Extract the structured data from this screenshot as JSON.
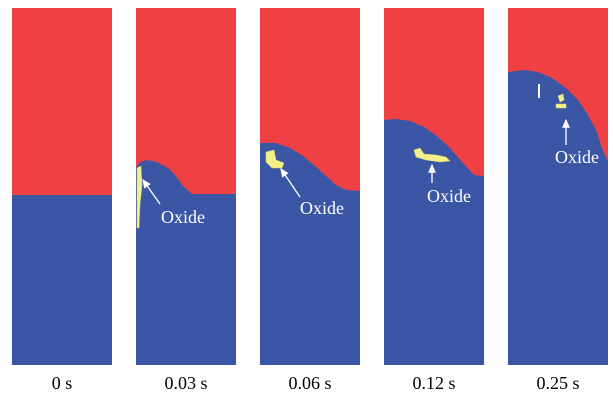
{
  "panels": [
    {
      "time": "0 s"
    },
    {
      "time": "0.03 s",
      "annotation": "Oxide"
    },
    {
      "time": "0.06 s",
      "annotation": "Oxide"
    },
    {
      "time": "0.12 s",
      "annotation": "Oxide"
    },
    {
      "time": "0.25 s",
      "annotation": "Oxide"
    }
  ]
}
